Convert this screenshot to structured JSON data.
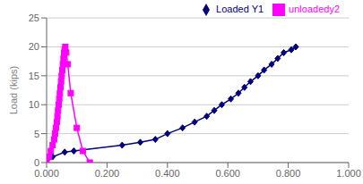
{
  "chart_data": {
    "type": "line",
    "ylabel": "Load (kips)",
    "xlim": [
      0.0,
      1.0
    ],
    "ylim": [
      0,
      25
    ],
    "xticks": [
      {
        "value": 0.0,
        "label": "0.000"
      },
      {
        "value": 0.2,
        "label": "0.200"
      },
      {
        "value": 0.4,
        "label": "0.400"
      },
      {
        "value": 0.6,
        "label": "0.600"
      },
      {
        "value": 0.8,
        "label": "0.800"
      },
      {
        "value": 1.0,
        "label": "1.000"
      }
    ],
    "yticks": [
      0,
      5,
      10,
      15,
      20,
      25
    ],
    "grid": "y",
    "legend": "upper right",
    "series": [
      {
        "name": "Loaded Y1",
        "color": "#000080",
        "marker": "diamond",
        "x": [
          0.0,
          0.02,
          0.06,
          0.09,
          0.25,
          0.31,
          0.36,
          0.4,
          0.45,
          0.49,
          0.53,
          0.555,
          0.58,
          0.61,
          0.635,
          0.655,
          0.675,
          0.7,
          0.72,
          0.745,
          0.765,
          0.785,
          0.81,
          0.825
        ],
        "values": [
          0.0,
          1.0,
          1.8,
          2.0,
          3.0,
          3.5,
          4.0,
          5.0,
          6.0,
          7.0,
          8.0,
          9.0,
          10.0,
          11.0,
          12.0,
          13.0,
          14.0,
          15.0,
          16.0,
          17.0,
          18.0,
          19.0,
          19.5,
          20.0
        ]
      },
      {
        "name": "unloadedy2",
        "color": "#FF00FF",
        "marker": "square",
        "x": [
          0.0,
          0.008,
          0.014,
          0.02,
          0.025,
          0.028,
          0.031,
          0.034,
          0.036,
          0.038,
          0.04,
          0.042,
          0.044,
          0.046,
          0.048,
          0.05,
          0.052,
          0.054,
          0.056,
          0.058,
          0.06,
          0.062,
          0.065,
          0.07,
          0.08,
          0.1,
          0.12,
          0.143
        ],
        "values": [
          0.0,
          1.0,
          2.0,
          3.0,
          4.0,
          5.0,
          6.0,
          7.0,
          8.0,
          9.0,
          10.0,
          11.0,
          12.0,
          13.0,
          14.0,
          15.0,
          16.0,
          17.0,
          18.0,
          19.0,
          19.5,
          20.0,
          19.0,
          17.0,
          12.0,
          6.0,
          2.0,
          0.0
        ]
      }
    ]
  }
}
